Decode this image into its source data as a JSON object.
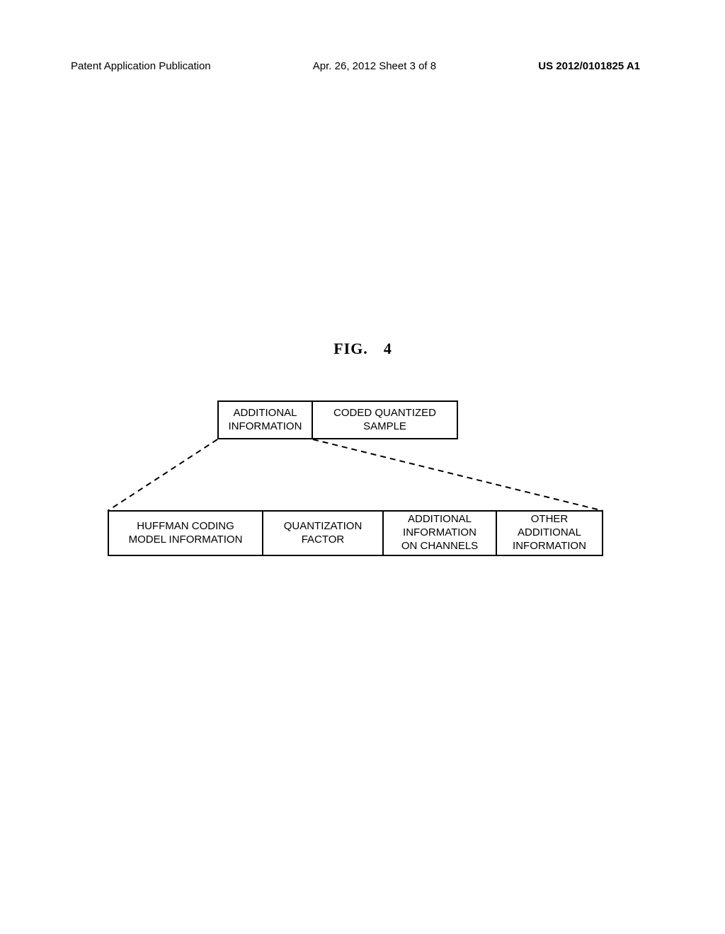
{
  "header": {
    "left": "Patent Application Publication",
    "center": "Apr. 26, 2012  Sheet 3 of 8",
    "right": "US 2012/0101825 A1"
  },
  "figure": {
    "title_label": "FIG.",
    "title_number": "4",
    "top_boxes": [
      {
        "label": "ADDITIONAL\nINFORMATION"
      },
      {
        "label": "CODED QUANTIZED\nSAMPLE"
      }
    ],
    "bottom_boxes": [
      {
        "label": "HUFFMAN CODING\nMODEL INFORMATION"
      },
      {
        "label": "QUANTIZATION\nFACTOR"
      },
      {
        "label": "ADDITIONAL\nINFORMATION\nON CHANNELS"
      },
      {
        "label": "OTHER\nADDITIONAL\nINFORMATION"
      }
    ],
    "colors": {
      "border": "#000000",
      "background": "#ffffff",
      "text": "#000000"
    },
    "styling": {
      "border_width": 2,
      "box_font_size": 15,
      "title_font_size": 22,
      "header_font_size": 15
    },
    "dash_pattern": "8,6"
  }
}
